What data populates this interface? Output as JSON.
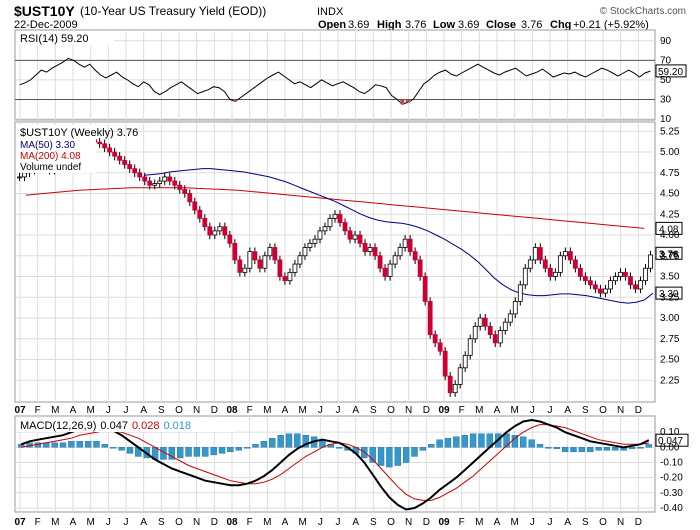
{
  "header": {
    "symbol": "$UST10Y",
    "description": "(10-Year US Treasury Yield (EOD))",
    "exchange": "INDX",
    "date": "22-Dec-2009",
    "watermark": "© StockCharts.com",
    "quote": {
      "open_label": "Open",
      "open": "3.69",
      "high_label": "High",
      "high": "3.76",
      "low_label": "Low",
      "low": "3.69",
      "close_label": "Close",
      "close": "3.76",
      "chg_label": "Chg",
      "chg": "+0.21 (+5.92%)"
    }
  },
  "colors": {
    "ma50": "#000080",
    "ma200": "#cc0000",
    "up": "#ffffff",
    "down": "#cc0033",
    "hist": "#3399cc",
    "macd": "#000000",
    "signal": "#cc0000"
  },
  "chart_data": [
    {
      "type": "line",
      "title": "RSI(14) 59.20",
      "ylim": [
        10,
        100
      ],
      "ticks": [
        "90",
        "70",
        "50",
        "30",
        "10"
      ],
      "tick_values": [
        90,
        70,
        50,
        30,
        10
      ],
      "reference_lines": [
        70,
        30
      ],
      "last_label": "59.20",
      "last": 59.2,
      "values": [
        45,
        47,
        50,
        55,
        60,
        58,
        62,
        65,
        68,
        72,
        70,
        66,
        63,
        66,
        60,
        55,
        52,
        55,
        58,
        53,
        50,
        46,
        43,
        48,
        45,
        38,
        35,
        38,
        42,
        45,
        48,
        44,
        40,
        36,
        38,
        40,
        43,
        42,
        38,
        30,
        28,
        32,
        36,
        40,
        44,
        48,
        52,
        55,
        58,
        54,
        50,
        46,
        48,
        45,
        42,
        46,
        50,
        47,
        44,
        46,
        48,
        45,
        42,
        38,
        36,
        40,
        45,
        44,
        42,
        34,
        30,
        25,
        27,
        30,
        38,
        46,
        50,
        55,
        58,
        60,
        56,
        54,
        57,
        60,
        63,
        66,
        63,
        60,
        57,
        55,
        58,
        60,
        62,
        58,
        54,
        56,
        58,
        61,
        57,
        53,
        55,
        57,
        56,
        58,
        55,
        53,
        56,
        59,
        62,
        60,
        57,
        54,
        57,
        60,
        57,
        53,
        57,
        59
      ]
    },
    {
      "type": "candlestick",
      "title": "$UST10Y (Weekly) 3.76",
      "legend": [
        "MA(50) 3.30",
        "MA(200) 4.08",
        "Volume undef"
      ],
      "ylim": [
        2.0,
        5.35
      ],
      "ticks": [
        "5.25",
        "5.00",
        "4.75",
        "4.50",
        "4.25",
        "4.00",
        "3.75",
        "3.50",
        "3.25",
        "3.00",
        "2.75",
        "2.50",
        "2.25"
      ],
      "tick_values": [
        5.25,
        5.0,
        4.75,
        4.5,
        4.25,
        4.0,
        3.75,
        3.5,
        3.25,
        3.0,
        2.75,
        2.5,
        2.25
      ],
      "last_close_label": "3.76",
      "ma200_label": "4.08",
      "ma50_label": "3.30",
      "x_axis": [
        "07",
        "F",
        "M",
        "A",
        "M",
        "J",
        "J",
        "A",
        "S",
        "O",
        "N",
        "D",
        "08",
        "F",
        "M",
        "A",
        "M",
        "J",
        "J",
        "A",
        "S",
        "O",
        "N",
        "D",
        "09",
        "F",
        "M",
        "A",
        "M",
        "J",
        "J",
        "A",
        "S",
        "O",
        "N",
        "D"
      ],
      "x_axis_bold": [
        "07",
        "08",
        "09"
      ],
      "closes": [
        4.7,
        4.75,
        4.78,
        4.8,
        4.83,
        4.8,
        4.78,
        4.85,
        4.9,
        4.95,
        5.0,
        5.02,
        5.05,
        5.1,
        5.15,
        5.12,
        5.1,
        5.05,
        5.0,
        4.95,
        4.9,
        4.85,
        4.8,
        4.75,
        4.7,
        4.65,
        4.6,
        4.62,
        4.65,
        4.7,
        4.65,
        4.6,
        4.55,
        4.5,
        4.4,
        4.3,
        4.2,
        4.1,
        4.0,
        4.05,
        4.1,
        4.0,
        3.9,
        3.7,
        3.55,
        3.6,
        3.8,
        3.7,
        3.6,
        3.75,
        3.85,
        3.7,
        3.5,
        3.45,
        3.55,
        3.65,
        3.75,
        3.85,
        3.9,
        3.95,
        4.05,
        4.1,
        4.2,
        4.25,
        4.15,
        4.05,
        3.95,
        4.0,
        3.9,
        3.8,
        3.85,
        3.75,
        3.6,
        3.5,
        3.65,
        3.75,
        3.85,
        3.95,
        3.8,
        3.7,
        3.5,
        3.2,
        2.8,
        2.7,
        2.6,
        2.3,
        2.1,
        2.2,
        2.4,
        2.55,
        2.75,
        2.9,
        3.0,
        2.9,
        2.8,
        2.7,
        2.85,
        2.95,
        3.05,
        3.2,
        3.4,
        3.6,
        3.7,
        3.85,
        3.7,
        3.6,
        3.5,
        3.55,
        3.75,
        3.8,
        3.7,
        3.6,
        3.5,
        3.45,
        3.4,
        3.35,
        3.3,
        3.35,
        3.45,
        3.5,
        3.55,
        3.5,
        3.4,
        3.35,
        3.45,
        3.6,
        3.76
      ],
      "ma50": [
        4.72,
        4.73,
        4.74,
        4.76,
        4.77,
        4.78,
        4.79,
        4.8,
        4.8,
        4.79,
        4.78,
        4.77,
        4.76,
        4.74,
        4.72,
        4.7,
        4.67,
        4.64,
        4.6,
        4.56,
        4.52,
        4.48,
        4.44,
        4.4,
        4.35,
        4.3,
        4.25,
        4.21,
        4.18,
        4.16,
        4.15,
        4.14,
        4.12,
        4.09,
        4.05,
        4.0,
        3.95,
        3.89,
        3.83,
        3.76,
        3.68,
        3.58,
        3.48,
        3.4,
        3.34,
        3.3,
        3.28,
        3.27,
        3.27,
        3.28,
        3.29,
        3.29,
        3.28,
        3.27,
        3.25,
        3.23,
        3.21,
        3.19,
        3.18,
        3.19,
        3.22,
        3.3
      ],
      "ma200": [
        4.48,
        4.5,
        4.52,
        4.54,
        4.55,
        4.56,
        4.57,
        4.57,
        4.57,
        4.57,
        4.56,
        4.55,
        4.54,
        4.52,
        4.5,
        4.48,
        4.46,
        4.44,
        4.42,
        4.4,
        4.38,
        4.36,
        4.34,
        4.32,
        4.3,
        4.28,
        4.26,
        4.24,
        4.22,
        4.2,
        4.18,
        4.16,
        4.14,
        4.12,
        4.1,
        4.08
      ]
    },
    {
      "type": "line",
      "title": "MACD(12,26,9)",
      "macd_value": "0.047",
      "signal_value": "0.028",
      "hist_value": "0.018",
      "last_label": "0.047",
      "ylim": [
        -0.42,
        0.2
      ],
      "ticks": [
        "0.10",
        "0.00",
        "-0.10",
        "-0.20",
        "-0.30",
        "-0.40"
      ],
      "tick_values": [
        0.1,
        0.0,
        -0.1,
        -0.2,
        -0.3,
        -0.4
      ],
      "macd": [
        0.02,
        0.04,
        0.05,
        0.06,
        0.07,
        0.08,
        0.1,
        0.12,
        0.13,
        0.14,
        0.13,
        0.11,
        0.08,
        0.04,
        0.0,
        -0.04,
        -0.08,
        -0.11,
        -0.14,
        -0.16,
        -0.18,
        -0.2,
        -0.22,
        -0.23,
        -0.24,
        -0.25,
        -0.25,
        -0.24,
        -0.22,
        -0.19,
        -0.15,
        -0.1,
        -0.05,
        -0.01,
        0.02,
        0.04,
        0.05,
        0.04,
        0.03,
        0.0,
        -0.04,
        -0.1,
        -0.18,
        -0.26,
        -0.33,
        -0.38,
        -0.41,
        -0.4,
        -0.37,
        -0.33,
        -0.28,
        -0.24,
        -0.2,
        -0.15,
        -0.1,
        -0.05,
        0.0,
        0.05,
        0.1,
        0.14,
        0.17,
        0.18,
        0.17,
        0.15,
        0.13,
        0.1,
        0.08,
        0.06,
        0.04,
        0.03,
        0.02,
        0.01,
        0.0,
        0.01,
        0.02,
        0.047
      ],
      "signal": [
        0.0,
        0.01,
        0.02,
        0.03,
        0.04,
        0.05,
        0.06,
        0.08,
        0.09,
        0.1,
        0.11,
        0.11,
        0.1,
        0.08,
        0.06,
        0.03,
        0.0,
        -0.03,
        -0.06,
        -0.09,
        -0.12,
        -0.14,
        -0.16,
        -0.18,
        -0.2,
        -0.22,
        -0.23,
        -0.24,
        -0.24,
        -0.23,
        -0.21,
        -0.18,
        -0.14,
        -0.1,
        -0.06,
        -0.03,
        0.0,
        0.02,
        0.03,
        0.02,
        0.0,
        -0.03,
        -0.08,
        -0.14,
        -0.2,
        -0.26,
        -0.31,
        -0.34,
        -0.35,
        -0.35,
        -0.33,
        -0.3,
        -0.27,
        -0.23,
        -0.19,
        -0.14,
        -0.09,
        -0.04,
        0.01,
        0.06,
        0.1,
        0.13,
        0.15,
        0.15,
        0.14,
        0.13,
        0.11,
        0.09,
        0.07,
        0.05,
        0.04,
        0.03,
        0.02,
        0.02,
        0.02,
        0.028
      ]
    }
  ]
}
